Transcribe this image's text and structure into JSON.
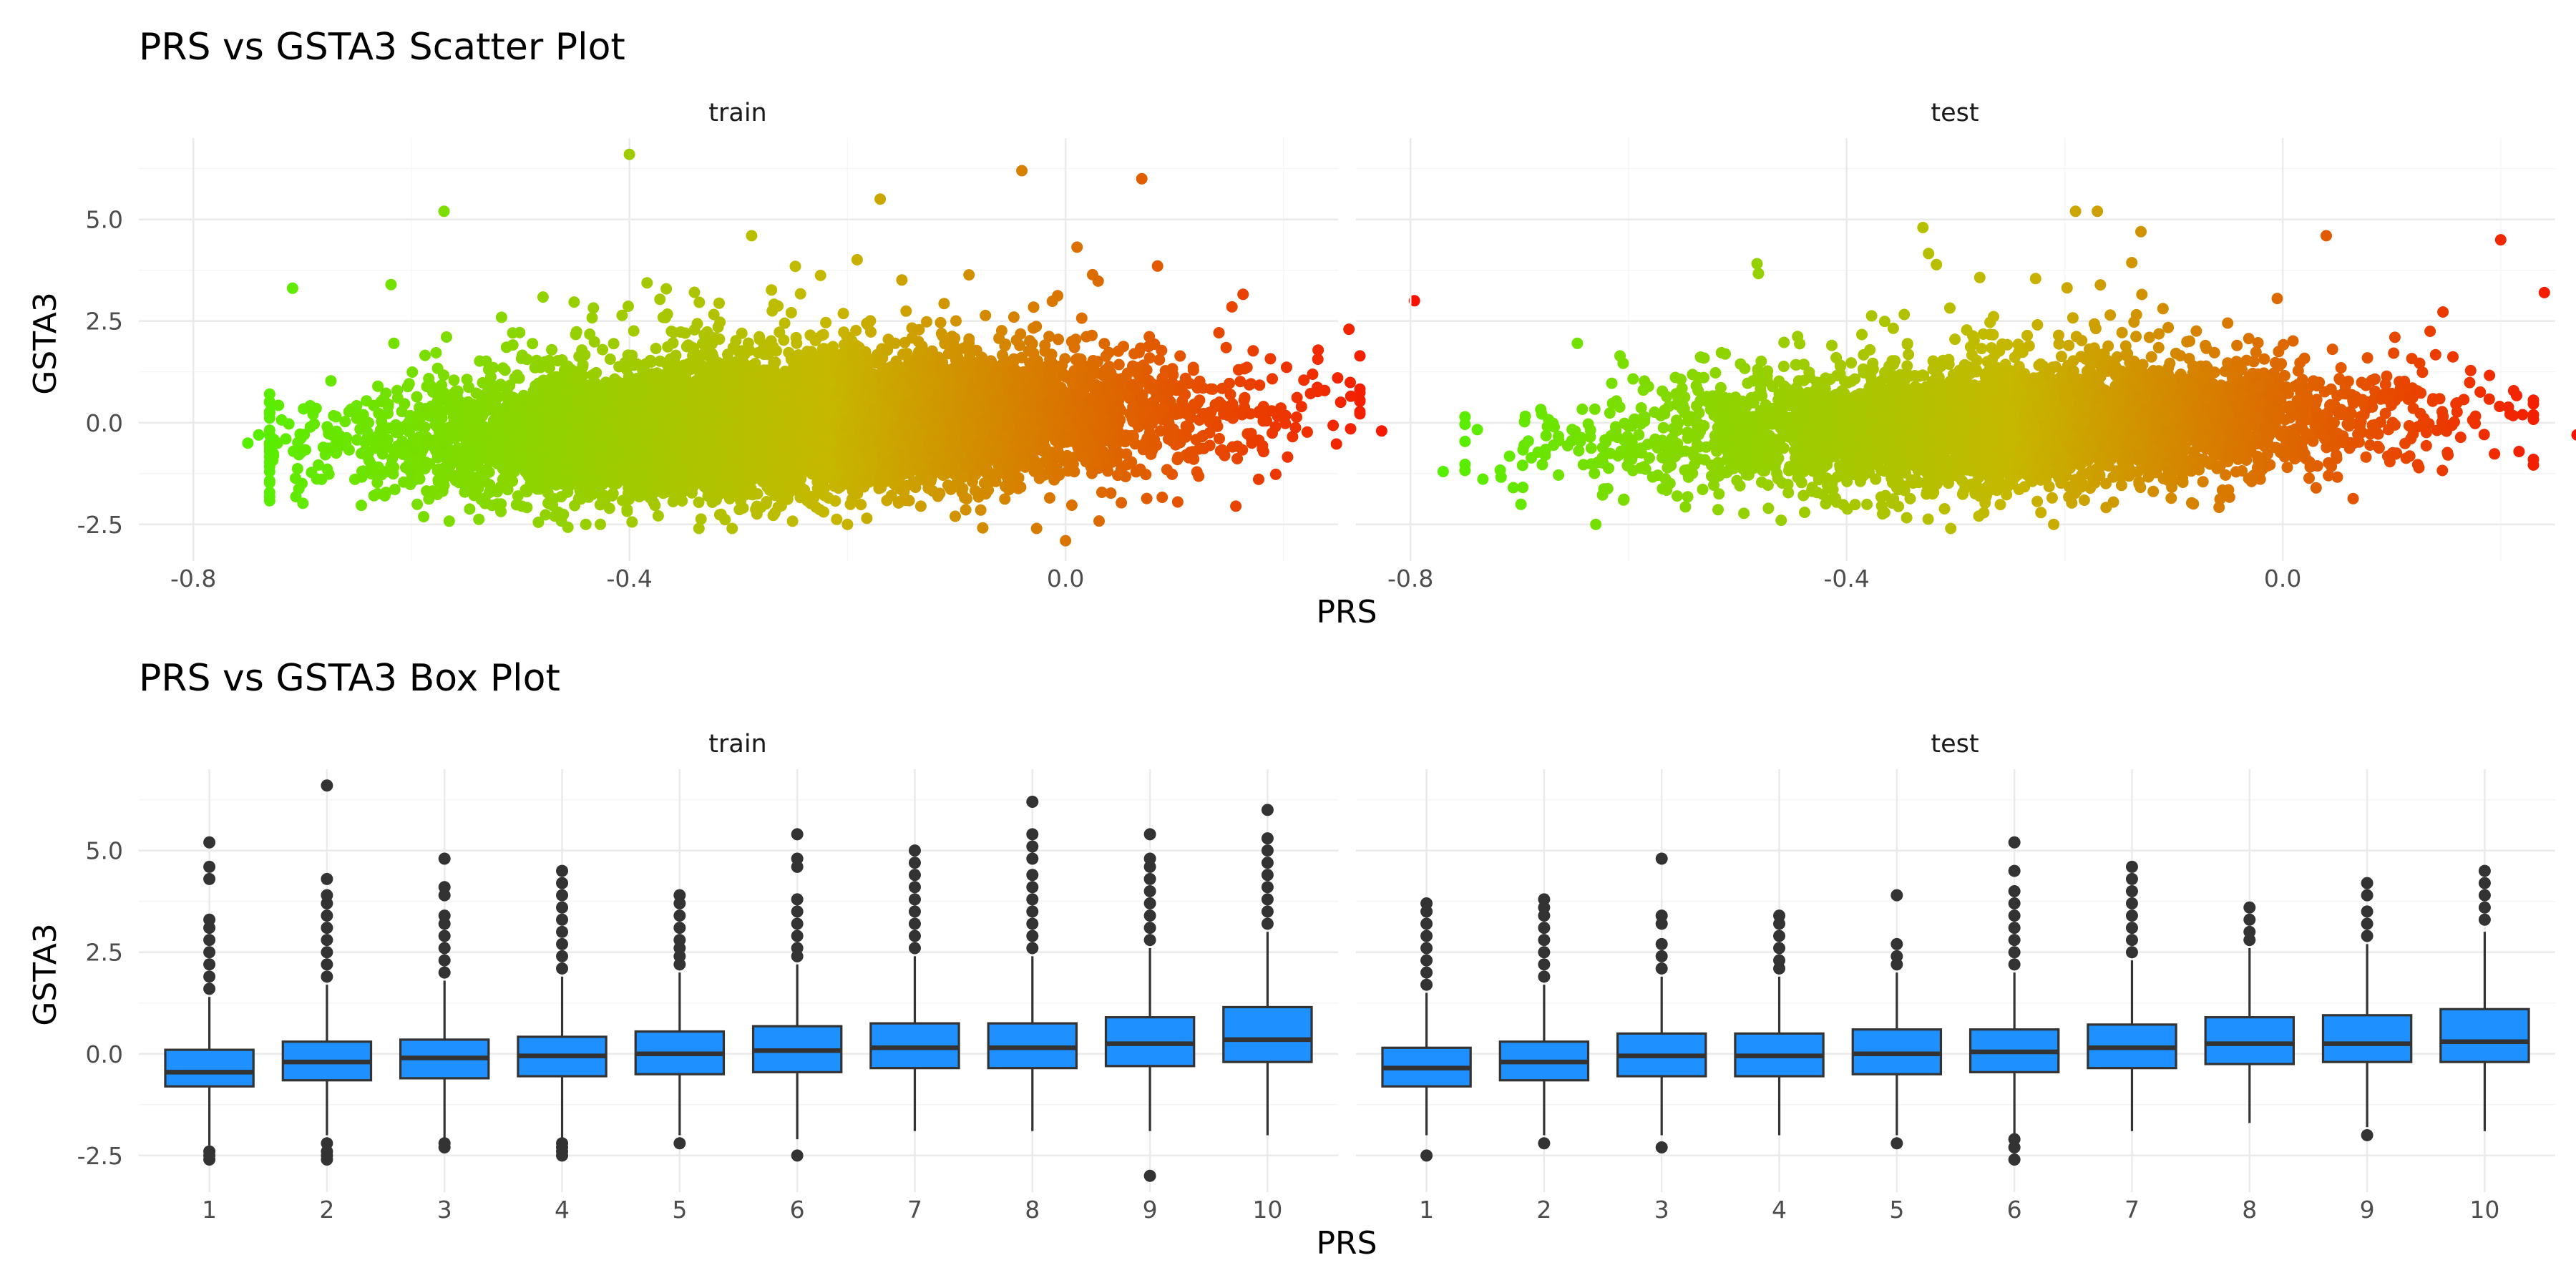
{
  "colors": {
    "low": "#55f000",
    "mid": "#c6b800",
    "high": "#f81000",
    "box_fill": "#1e90ff",
    "box_line": "#333333"
  },
  "chart_data": [
    {
      "type": "scatter",
      "title": "PRS vs GSTA3 Scatter Plot",
      "xlabel": "PRS",
      "ylabel": "GSTA3",
      "xlim": [
        -0.85,
        0.25
      ],
      "ylim": [
        -3.4,
        7.0
      ],
      "xticks": [
        "-0.8",
        "-0.4",
        "0.0"
      ],
      "yticks": [
        "-2.5",
        "0.0",
        "2.5",
        "5.0"
      ],
      "color_by": "x",
      "grid": true,
      "facets": [
        {
          "strip": "train",
          "x_range": [
            -0.76,
            0.32
          ],
          "n_points": 9000,
          "notable_points": [
            {
              "x": -0.4,
              "y": 6.6
            },
            {
              "x": -0.57,
              "y": 5.2
            },
            {
              "x": -0.04,
              "y": 6.2
            },
            {
              "x": 0.07,
              "y": 6.0
            },
            {
              "x": -0.17,
              "y": 5.5
            },
            {
              "x": 0.32,
              "y": 3.0
            },
            {
              "x": 0.0,
              "y": -2.9
            },
            {
              "x": -0.74,
              "y": -0.3
            },
            {
              "x": -0.75,
              "y": -0.5
            },
            {
              "x": -0.73,
              "y": -1.2
            },
            {
              "x": 0.29,
              "y": -0.2
            },
            {
              "x": 0.26,
              "y": 2.3
            },
            {
              "x": -0.44,
              "y": -2.5
            },
            {
              "x": -0.2,
              "y": -2.5
            }
          ]
        },
        {
          "strip": "test",
          "x_range": [
            -0.78,
            0.28
          ],
          "n_points": 4200,
          "notable_points": [
            {
              "x": -0.33,
              "y": 4.8
            },
            {
              "x": -0.19,
              "y": 5.2
            },
            {
              "x": -0.17,
              "y": 5.2
            },
            {
              "x": -0.13,
              "y": 4.7
            },
            {
              "x": 0.24,
              "y": 3.2
            },
            {
              "x": 0.28,
              "y": 0.7
            },
            {
              "x": 0.27,
              "y": -0.3
            },
            {
              "x": -0.77,
              "y": -1.2
            },
            {
              "x": -0.63,
              "y": -2.5
            },
            {
              "x": -0.21,
              "y": -2.5
            },
            {
              "x": 0.2,
              "y": 4.5
            },
            {
              "x": 0.04,
              "y": 4.6
            }
          ]
        }
      ]
    },
    {
      "type": "box",
      "title": "PRS vs GSTA3 Box Plot",
      "xlabel": "PRS",
      "ylabel": "GSTA3",
      "categories": [
        "1",
        "2",
        "3",
        "4",
        "5",
        "6",
        "7",
        "8",
        "9",
        "10"
      ],
      "ylim": [
        -3.4,
        7.0
      ],
      "yticks": [
        "-2.5",
        "0.0",
        "2.5",
        "5.0"
      ],
      "grid": true,
      "facets": [
        {
          "strip": "train",
          "boxes": [
            {
              "q1": -0.8,
              "median": -0.45,
              "q3": 0.1,
              "whisker_low": -2.25,
              "whisker_high": 1.4,
              "outliers_high": [
                1.6,
                1.9,
                2.2,
                2.5,
                2.8,
                3.1,
                3.3,
                4.3,
                4.6,
                5.2
              ],
              "outliers_low": [
                -2.4,
                -2.5,
                -2.6
              ]
            },
            {
              "q1": -0.65,
              "median": -0.2,
              "q3": 0.3,
              "whisker_low": -2.0,
              "whisker_high": 1.7,
              "outliers_high": [
                1.9,
                2.2,
                2.5,
                2.8,
                3.1,
                3.4,
                3.7,
                3.9,
                4.3,
                6.6
              ],
              "outliers_low": [
                -2.2,
                -2.4,
                -2.5,
                -2.6
              ]
            },
            {
              "q1": -0.6,
              "median": -0.1,
              "q3": 0.35,
              "whisker_low": -2.1,
              "whisker_high": 1.8,
              "outliers_high": [
                2.0,
                2.3,
                2.6,
                2.9,
                3.2,
                3.4,
                3.9,
                4.1,
                4.8
              ],
              "outliers_low": [
                -2.2,
                -2.3
              ]
            },
            {
              "q1": -0.55,
              "median": -0.05,
              "q3": 0.42,
              "whisker_low": -2.1,
              "whisker_high": 1.9,
              "outliers_high": [
                2.1,
                2.4,
                2.7,
                3.0,
                3.3,
                3.6,
                3.9,
                4.2,
                4.5
              ],
              "outliers_low": [
                -2.2,
                -2.3,
                -2.4,
                -2.5
              ]
            },
            {
              "q1": -0.5,
              "median": 0.0,
              "q3": 0.55,
              "whisker_low": -2.0,
              "whisker_high": 2.0,
              "outliers_high": [
                2.2,
                2.4,
                2.6,
                2.8,
                3.1,
                3.4,
                3.7,
                3.9
              ],
              "outliers_low": [
                -2.2
              ]
            },
            {
              "q1": -0.45,
              "median": 0.08,
              "q3": 0.68,
              "whisker_low": -2.1,
              "whisker_high": 2.2,
              "outliers_high": [
                2.4,
                2.6,
                2.9,
                3.2,
                3.5,
                3.8,
                4.6,
                4.8,
                5.4
              ],
              "outliers_low": [
                -2.5
              ]
            },
            {
              "q1": -0.35,
              "median": 0.15,
              "q3": 0.75,
              "whisker_low": -1.9,
              "whisker_high": 2.4,
              "outliers_high": [
                2.6,
                2.9,
                3.2,
                3.5,
                3.8,
                4.1,
                4.4,
                4.7,
                5.0
              ],
              "outliers_low": []
            },
            {
              "q1": -0.35,
              "median": 0.15,
              "q3": 0.75,
              "whisker_low": -1.9,
              "whisker_high": 2.4,
              "outliers_high": [
                2.6,
                2.9,
                3.2,
                3.5,
                3.8,
                4.1,
                4.4,
                4.8,
                5.1,
                5.4,
                6.2
              ],
              "outliers_low": []
            },
            {
              "q1": -0.3,
              "median": 0.25,
              "q3": 0.9,
              "whisker_low": -1.9,
              "whisker_high": 2.6,
              "outliers_high": [
                2.8,
                3.1,
                3.4,
                3.7,
                4.0,
                4.3,
                4.6,
                4.8,
                5.4
              ],
              "outliers_low": [
                -3.0
              ]
            },
            {
              "q1": -0.2,
              "median": 0.35,
              "q3": 1.15,
              "whisker_low": -2.0,
              "whisker_high": 3.0,
              "outliers_high": [
                3.2,
                3.5,
                3.8,
                4.1,
                4.4,
                4.7,
                5.0,
                5.3,
                6.0
              ],
              "outliers_low": []
            }
          ]
        },
        {
          "strip": "test",
          "boxes": [
            {
              "q1": -0.8,
              "median": -0.35,
              "q3": 0.15,
              "whisker_low": -2.0,
              "whisker_high": 1.5,
              "outliers_high": [
                1.7,
                2.0,
                2.3,
                2.6,
                2.9,
                3.2,
                3.5,
                3.7
              ],
              "outliers_low": [
                -2.5
              ]
            },
            {
              "q1": -0.65,
              "median": -0.2,
              "q3": 0.3,
              "whisker_low": -2.0,
              "whisker_high": 1.7,
              "outliers_high": [
                1.9,
                2.2,
                2.5,
                2.8,
                3.1,
                3.4,
                3.6,
                3.8
              ],
              "outliers_low": [
                -2.2
              ]
            },
            {
              "q1": -0.55,
              "median": -0.05,
              "q3": 0.5,
              "whisker_low": -2.0,
              "whisker_high": 1.9,
              "outliers_high": [
                2.1,
                2.4,
                2.7,
                3.2,
                3.4,
                4.8
              ],
              "outliers_low": [
                -2.3
              ]
            },
            {
              "q1": -0.55,
              "median": -0.05,
              "q3": 0.5,
              "whisker_low": -2.0,
              "whisker_high": 1.9,
              "outliers_high": [
                2.1,
                2.3,
                2.6,
                2.9,
                3.2,
                3.4
              ],
              "outliers_low": []
            },
            {
              "q1": -0.5,
              "median": 0.0,
              "q3": 0.6,
              "whisker_low": -2.0,
              "whisker_high": 2.0,
              "outliers_high": [
                2.2,
                2.4,
                2.7,
                3.9
              ],
              "outliers_low": [
                -2.2
              ]
            },
            {
              "q1": -0.45,
              "median": 0.05,
              "q3": 0.6,
              "whisker_low": -2.0,
              "whisker_high": 2.0,
              "outliers_high": [
                2.2,
                2.5,
                2.8,
                3.1,
                3.4,
                3.7,
                4.0,
                4.5,
                5.2
              ],
              "outliers_low": [
                -2.1,
                -2.3,
                -2.6
              ]
            },
            {
              "q1": -0.35,
              "median": 0.15,
              "q3": 0.72,
              "whisker_low": -1.9,
              "whisker_high": 2.3,
              "outliers_high": [
                2.5,
                2.8,
                3.1,
                3.4,
                3.7,
                4.0,
                4.3,
                4.6
              ],
              "outliers_low": []
            },
            {
              "q1": -0.25,
              "median": 0.25,
              "q3": 0.9,
              "whisker_low": -1.7,
              "whisker_high": 2.6,
              "outliers_high": [
                2.8,
                3.0,
                3.3,
                3.6
              ],
              "outliers_low": []
            },
            {
              "q1": -0.2,
              "median": 0.25,
              "q3": 0.95,
              "whisker_low": -1.8,
              "whisker_high": 2.7,
              "outliers_high": [
                2.9,
                3.2,
                3.5,
                3.9,
                4.2
              ],
              "outliers_low": [
                -2.0
              ]
            },
            {
              "q1": -0.2,
              "median": 0.3,
              "q3": 1.1,
              "whisker_low": -1.9,
              "whisker_high": 3.0,
              "outliers_high": [
                3.3,
                3.6,
                3.9,
                4.2,
                4.5
              ],
              "outliers_low": []
            }
          ]
        }
      ]
    }
  ]
}
